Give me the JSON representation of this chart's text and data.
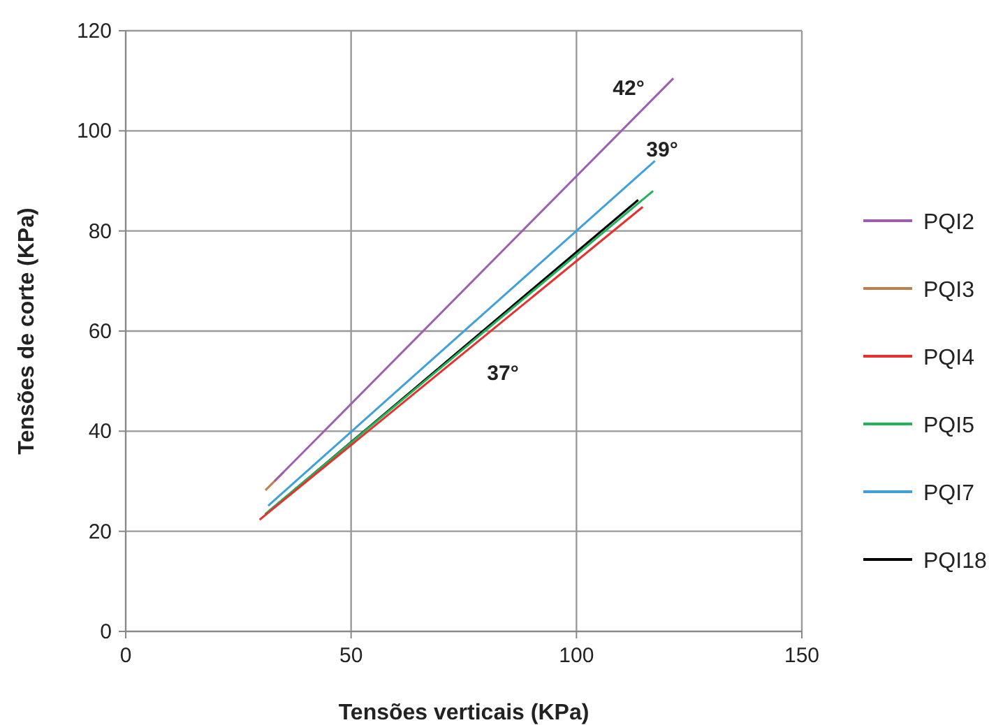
{
  "chart_data": {
    "type": "line",
    "xlabel": "Tensões verticais (KPa)",
    "ylabel": "Tensões de corte (KPa)",
    "xlim": [
      0,
      150
    ],
    "xticks": [
      0,
      50,
      100,
      150
    ],
    "ylim": [
      0,
      120
    ],
    "yticks": [
      0,
      20,
      40,
      60,
      80,
      100,
      120
    ],
    "grid": true,
    "legend": "right",
    "marker": "none",
    "line_style": "solid",
    "series": [
      {
        "name": "PQI2",
        "color": "#9f5fb0",
        "x": [
          33,
          121.5
        ],
        "values": [
          30,
          110.5
        ]
      },
      {
        "name": "PQI3",
        "color": "#c0804a",
        "x": [
          31,
          35
        ],
        "values": [
          28.2,
          31.8
        ]
      },
      {
        "name": "PQI4",
        "color": "#e8312f",
        "x": [
          29.7,
          114.7
        ],
        "values": [
          22.3,
          84.8
        ]
      },
      {
        "name": "PQI5",
        "color": "#1fb45a",
        "x": [
          31,
          117
        ],
        "values": [
          23.5,
          88
        ]
      },
      {
        "name": "PQI7",
        "color": "#3fa0dc",
        "x": [
          31.6,
          117.4
        ],
        "values": [
          25.1,
          94
        ]
      },
      {
        "name": "PQI18",
        "color": "#000000",
        "x": [
          31,
          113.7
        ],
        "values": [
          23.4,
          86.2
        ]
      }
    ],
    "annotations": [
      "42°",
      "39°",
      "37°"
    ]
  }
}
